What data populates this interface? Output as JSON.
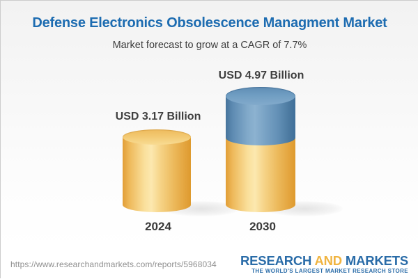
{
  "title": "Defense Electronics Obsolescence Managment Market",
  "subtitle": "Market forecast to grow at a CAGR of 7.7%",
  "chart_data": {
    "type": "bar",
    "subtype": "3d-cylinder",
    "title": "Defense Electronics Obsolescence Managment Market",
    "subtitle": "Market forecast to grow at a CAGR of 7.7%",
    "categories": [
      "2024",
      "2030"
    ],
    "values": [
      3.17,
      4.97
    ],
    "unit": "USD Billion",
    "value_labels": [
      "USD 3.17 Billion",
      "USD 4.97 Billion"
    ],
    "cagr_percent": 7.7,
    "stacking_note": "2030 cylinder is gold up to the 2024 base value (3.17) with a blue top segment for growth to 4.97",
    "segments_2030": {
      "base_gold": 3.17,
      "growth_blue": 1.8
    },
    "axes": "none",
    "grid": false,
    "legend_position": "none",
    "colors": {
      "gold": "#F5CE7E",
      "gold_edge": "#E09B31",
      "blue": "#6F9DC2",
      "blue_edge": "#40709A",
      "label_text": "#3F3F3F"
    }
  },
  "footer": {
    "url": "https://www.researchandmarkets.com/reports/5968034",
    "logo": {
      "word1": "RESEARCH",
      "word2": "AND",
      "word3": "MARKETS",
      "tagline": "THE WORLD'S LARGEST MARKET RESEARCH STORE",
      "blue": "#2A6CA8",
      "gold": "#F0B440"
    }
  },
  "theme": {
    "title_color": "#1D6CB1",
    "subtitle_color": "#3D3D3D",
    "url_color": "#8F8F8F",
    "panel_gradient_top": "#F2F2F2",
    "panel_gradient_bottom": "#FFFFFF"
  }
}
